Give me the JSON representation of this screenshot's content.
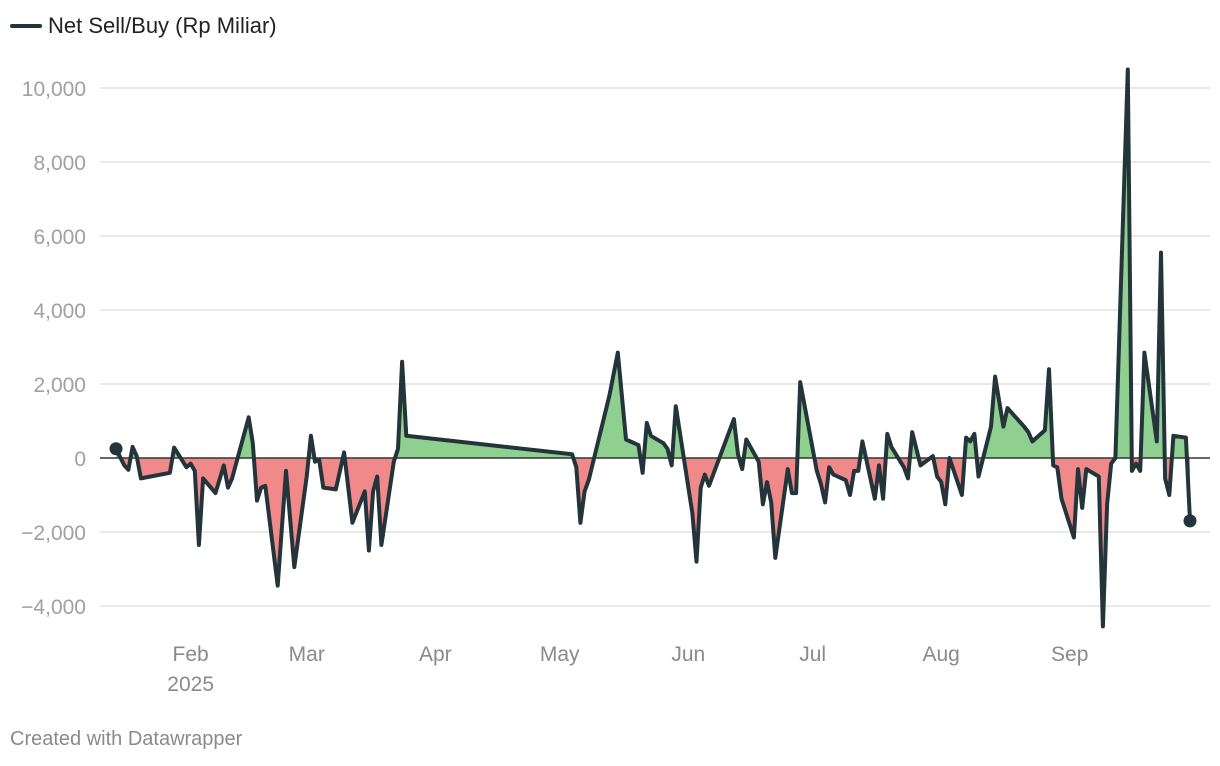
{
  "legend": {
    "label": "Net Sell/Buy (Rp Miliar)"
  },
  "footer": {
    "credit": "Created with Datawrapper"
  },
  "colors": {
    "line": "#24343b",
    "positive": "#8fcf8f",
    "negative": "#f08a8a",
    "grid": "#e2e2e2",
    "zero": "#333333"
  },
  "chart_data": {
    "type": "area",
    "title": "",
    "series_name": "Net Sell/Buy (Rp Miliar)",
    "xlabel": "",
    "ylabel": "",
    "x_range": [
      "2025-01-14",
      "2025-09-30"
    ],
    "ylim": [
      -4600,
      10800
    ],
    "y_ticks": [
      {
        "value": 10000,
        "label": "10,000"
      },
      {
        "value": 8000,
        "label": "8,000"
      },
      {
        "value": 6000,
        "label": "6,000"
      },
      {
        "value": 4000,
        "label": "4,000"
      },
      {
        "value": 2000,
        "label": "2,000"
      },
      {
        "value": 0,
        "label": "0"
      },
      {
        "value": -2000,
        "label": "−2,000"
      },
      {
        "value": -4000,
        "label": "−4,000"
      }
    ],
    "x_ticks": [
      {
        "date": "2025-02-01",
        "label": "Feb",
        "sublabel": "2025"
      },
      {
        "date": "2025-03-01",
        "label": "Mar",
        "sublabel": ""
      },
      {
        "date": "2025-04-01",
        "label": "Apr",
        "sublabel": ""
      },
      {
        "date": "2025-05-01",
        "label": "May",
        "sublabel": ""
      },
      {
        "date": "2025-06-01",
        "label": "Jun",
        "sublabel": ""
      },
      {
        "date": "2025-07-01",
        "label": "Jul",
        "sublabel": ""
      },
      {
        "date": "2025-08-01",
        "label": "Aug",
        "sublabel": ""
      },
      {
        "date": "2025-09-01",
        "label": "Sep",
        "sublabel": ""
      }
    ],
    "points": [
      [
        "2025-01-14",
        250
      ],
      [
        "2025-01-16",
        -200
      ],
      [
        "2025-01-17",
        -320
      ],
      [
        "2025-01-18",
        300
      ],
      [
        "2025-01-19",
        50
      ],
      [
        "2025-01-20",
        -550
      ],
      [
        "2025-01-27",
        -400
      ],
      [
        "2025-01-28",
        280
      ],
      [
        "2025-01-31",
        -250
      ],
      [
        "2025-02-01",
        -150
      ],
      [
        "2025-02-02",
        -350
      ],
      [
        "2025-02-03",
        -2350
      ],
      [
        "2025-02-04",
        -550
      ],
      [
        "2025-02-07",
        -950
      ],
      [
        "2025-02-09",
        -200
      ],
      [
        "2025-02-10",
        -800
      ],
      [
        "2025-02-11",
        -550
      ],
      [
        "2025-02-15",
        1100
      ],
      [
        "2025-02-16",
        400
      ],
      [
        "2025-02-17",
        -1150
      ],
      [
        "2025-02-18",
        -800
      ],
      [
        "2025-02-19",
        -750
      ],
      [
        "2025-02-22",
        -3450
      ],
      [
        "2025-02-24",
        -350
      ],
      [
        "2025-02-26",
        -2950
      ],
      [
        "2025-03-01",
        -500
      ],
      [
        "2025-03-02",
        600
      ],
      [
        "2025-03-03",
        -100
      ],
      [
        "2025-03-04",
        -50
      ],
      [
        "2025-03-05",
        -800
      ],
      [
        "2025-03-08",
        -850
      ],
      [
        "2025-03-10",
        150
      ],
      [
        "2025-03-12",
        -1750
      ],
      [
        "2025-03-15",
        -900
      ],
      [
        "2025-03-16",
        -2500
      ],
      [
        "2025-03-17",
        -900
      ],
      [
        "2025-03-18",
        -500
      ],
      [
        "2025-03-19",
        -2350
      ],
      [
        "2025-03-22",
        -100
      ],
      [
        "2025-03-23",
        250
      ],
      [
        "2025-03-24",
        2600
      ],
      [
        "2025-03-25",
        600
      ],
      [
        "2025-05-04",
        100
      ],
      [
        "2025-05-05",
        -250
      ],
      [
        "2025-05-06",
        -1750
      ],
      [
        "2025-05-07",
        -900
      ],
      [
        "2025-05-08",
        -600
      ],
      [
        "2025-05-13",
        1700
      ],
      [
        "2025-05-15",
        2850
      ],
      [
        "2025-05-17",
        500
      ],
      [
        "2025-05-20",
        350
      ],
      [
        "2025-05-21",
        -400
      ],
      [
        "2025-05-22",
        950
      ],
      [
        "2025-05-23",
        600
      ],
      [
        "2025-05-26",
        400
      ],
      [
        "2025-05-27",
        250
      ],
      [
        "2025-05-28",
        -200
      ],
      [
        "2025-05-29",
        1400
      ],
      [
        "2025-06-02",
        -1500
      ],
      [
        "2025-06-03",
        -2800
      ],
      [
        "2025-06-04",
        -800
      ],
      [
        "2025-06-05",
        -450
      ],
      [
        "2025-06-06",
        -750
      ],
      [
        "2025-06-12",
        1050
      ],
      [
        "2025-06-13",
        100
      ],
      [
        "2025-06-14",
        -300
      ],
      [
        "2025-06-15",
        500
      ],
      [
        "2025-06-18",
        -100
      ],
      [
        "2025-06-19",
        -1250
      ],
      [
        "2025-06-20",
        -650
      ],
      [
        "2025-06-21",
        -1200
      ],
      [
        "2025-06-22",
        -2700
      ],
      [
        "2025-06-25",
        -300
      ],
      [
        "2025-06-26",
        -950
      ],
      [
        "2025-06-27",
        -950
      ],
      [
        "2025-06-28",
        2050
      ],
      [
        "2025-07-02",
        -350
      ],
      [
        "2025-07-03",
        -700
      ],
      [
        "2025-07-04",
        -1200
      ],
      [
        "2025-07-05",
        -250
      ],
      [
        "2025-07-06",
        -450
      ],
      [
        "2025-07-09",
        -600
      ],
      [
        "2025-07-10",
        -1000
      ],
      [
        "2025-07-11",
        -350
      ],
      [
        "2025-07-12",
        -350
      ],
      [
        "2025-07-13",
        450
      ],
      [
        "2025-07-16",
        -1100
      ],
      [
        "2025-07-17",
        -200
      ],
      [
        "2025-07-18",
        -1100
      ],
      [
        "2025-07-19",
        650
      ],
      [
        "2025-07-20",
        300
      ],
      [
        "2025-07-23",
        -250
      ],
      [
        "2025-07-24",
        -550
      ],
      [
        "2025-07-25",
        700
      ],
      [
        "2025-07-27",
        -200
      ],
      [
        "2025-07-30",
        50
      ],
      [
        "2025-07-31",
        -500
      ],
      [
        "2025-08-01",
        -650
      ],
      [
        "2025-08-02",
        -1250
      ],
      [
        "2025-08-03",
        0
      ],
      [
        "2025-08-06",
        -1000
      ],
      [
        "2025-08-07",
        550
      ],
      [
        "2025-08-08",
        450
      ],
      [
        "2025-08-09",
        650
      ],
      [
        "2025-08-10",
        -500
      ],
      [
        "2025-08-13",
        850
      ],
      [
        "2025-08-14",
        2200
      ],
      [
        "2025-08-16",
        850
      ],
      [
        "2025-08-17",
        1350
      ],
      [
        "2025-08-21",
        850
      ],
      [
        "2025-08-22",
        700
      ],
      [
        "2025-08-23",
        450
      ],
      [
        "2025-08-26",
        750
      ],
      [
        "2025-08-27",
        2400
      ],
      [
        "2025-08-28",
        -200
      ],
      [
        "2025-08-29",
        -250
      ],
      [
        "2025-08-30",
        -1100
      ],
      [
        "2025-09-02",
        -2150
      ],
      [
        "2025-09-03",
        -300
      ],
      [
        "2025-09-04",
        -1350
      ],
      [
        "2025-09-05",
        -300
      ],
      [
        "2025-09-08",
        -500
      ],
      [
        "2025-09-09",
        -4550
      ],
      [
        "2025-09-10",
        -1250
      ],
      [
        "2025-09-11",
        -150
      ],
      [
        "2025-09-12",
        0
      ],
      [
        "2025-09-15",
        10500
      ],
      [
        "2025-09-16",
        -350
      ],
      [
        "2025-09-17",
        -150
      ],
      [
        "2025-09-18",
        -350
      ],
      [
        "2025-09-19",
        2850
      ],
      [
        "2025-09-22",
        450
      ],
      [
        "2025-09-23",
        5550
      ],
      [
        "2025-09-24",
        -550
      ],
      [
        "2025-09-25",
        -1000
      ],
      [
        "2025-09-26",
        600
      ],
      [
        "2025-09-29",
        550
      ],
      [
        "2025-09-30",
        -1700
      ]
    ]
  }
}
